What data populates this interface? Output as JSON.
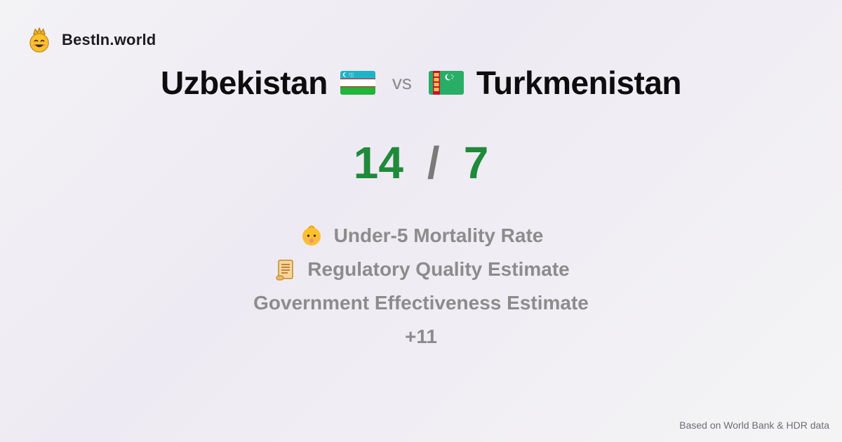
{
  "brand": {
    "name": "BestIn.world",
    "logo_icon": "crowned-smiley-icon"
  },
  "comparison": {
    "left_country": "Uzbekistan",
    "left_flag": "uzbekistan-flag-icon",
    "vs_label": "vs",
    "right_country": "Turkmenistan",
    "right_flag": "turkmenistan-flag-icon"
  },
  "score": {
    "left": "14",
    "separator": "/",
    "right": "7"
  },
  "metrics": [
    {
      "label": "Under-5 Mortality Rate",
      "icon": "baby-icon"
    },
    {
      "label": "Regulatory Quality Estimate",
      "icon": "scroll-icon"
    },
    {
      "label": "Government Effectiveness Estimate",
      "icon": ""
    },
    {
      "label": "+11",
      "icon": ""
    }
  ],
  "footer": {
    "source_text": "Based on World Bank & HDR data"
  },
  "colors": {
    "score_green": "#1f8a3a",
    "muted_gray": "#8c8c8c",
    "title_black": "#0d0d0d"
  }
}
